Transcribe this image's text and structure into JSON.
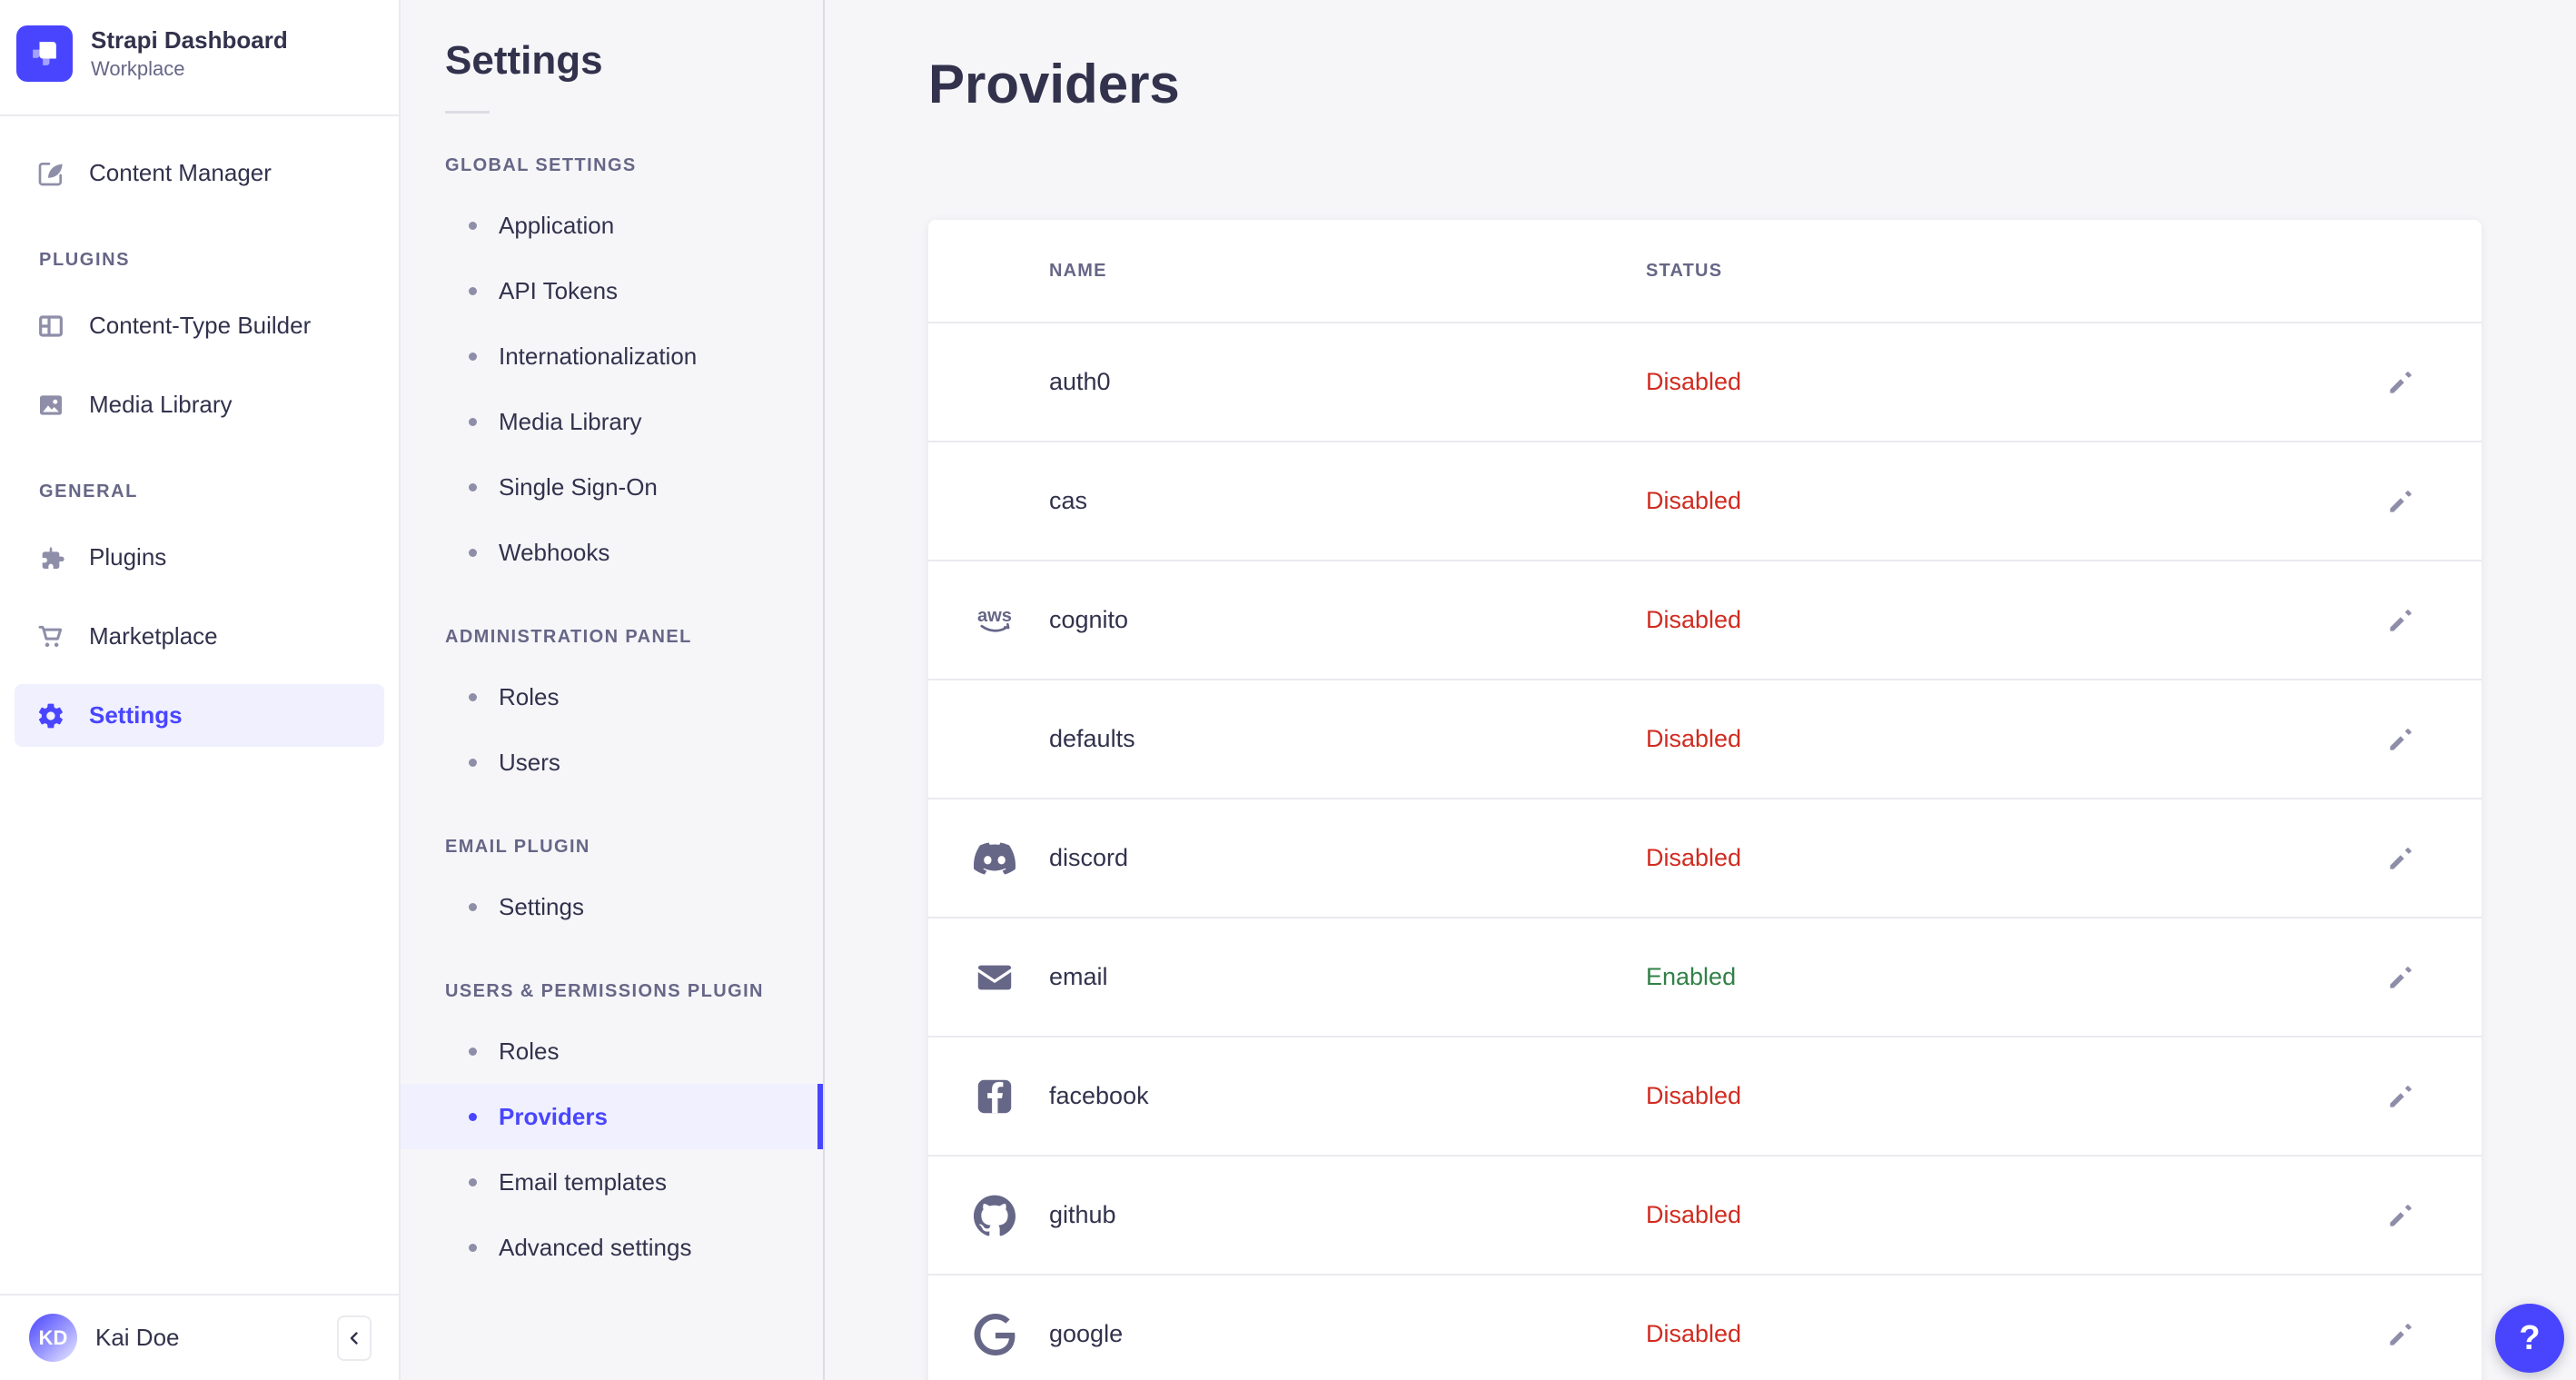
{
  "colors": {
    "primary": "#4945ff",
    "primary_bg": "#f0f0ff",
    "success": "#328048",
    "danger": "#d02b20"
  },
  "sidebar": {
    "app_title": "Strapi Dashboard",
    "app_subtitle": "Workplace",
    "sections": [
      {
        "label": "",
        "items": [
          {
            "label": "Content Manager",
            "icon": "content-manager"
          }
        ]
      },
      {
        "label": "PLUGINS",
        "items": [
          {
            "label": "Content-Type Builder",
            "icon": "content-type-builder"
          },
          {
            "label": "Media Library",
            "icon": "media-library"
          }
        ]
      },
      {
        "label": "GENERAL",
        "items": [
          {
            "label": "Plugins",
            "icon": "plugins"
          },
          {
            "label": "Marketplace",
            "icon": "marketplace"
          },
          {
            "label": "Settings",
            "icon": "settings-gear",
            "active": true
          }
        ]
      }
    ],
    "user": {
      "initials": "KD",
      "name": "Kai Doe"
    }
  },
  "settings_nav": {
    "title": "Settings",
    "sections": [
      {
        "label": "GLOBAL SETTINGS",
        "items": [
          {
            "label": "Application"
          },
          {
            "label": "API Tokens"
          },
          {
            "label": "Internationalization"
          },
          {
            "label": "Media Library"
          },
          {
            "label": "Single Sign-On"
          },
          {
            "label": "Webhooks"
          }
        ]
      },
      {
        "label": "ADMINISTRATION PANEL",
        "items": [
          {
            "label": "Roles"
          },
          {
            "label": "Users"
          }
        ]
      },
      {
        "label": "EMAIL PLUGIN",
        "items": [
          {
            "label": "Settings"
          }
        ]
      },
      {
        "label": "USERS & PERMISSIONS PLUGIN",
        "items": [
          {
            "label": "Roles"
          },
          {
            "label": "Providers",
            "active": true
          },
          {
            "label": "Email templates"
          },
          {
            "label": "Advanced settings"
          }
        ]
      }
    ]
  },
  "main": {
    "title": "Providers",
    "table": {
      "columns": [
        "NAME",
        "STATUS"
      ],
      "status_colors": {
        "Enabled": "#328048",
        "Disabled": "#d02b20"
      },
      "rows": [
        {
          "name": "auth0",
          "icon": "",
          "status": "Disabled"
        },
        {
          "name": "cas",
          "icon": "",
          "status": "Disabled"
        },
        {
          "name": "cognito",
          "icon": "aws",
          "status": "Disabled"
        },
        {
          "name": "defaults",
          "icon": "",
          "status": "Disabled"
        },
        {
          "name": "discord",
          "icon": "discord",
          "status": "Disabled"
        },
        {
          "name": "email",
          "icon": "email",
          "status": "Enabled"
        },
        {
          "name": "facebook",
          "icon": "facebook",
          "status": "Disabled"
        },
        {
          "name": "github",
          "icon": "github",
          "status": "Disabled"
        },
        {
          "name": "google",
          "icon": "google",
          "status": "Disabled"
        }
      ]
    }
  },
  "help": {
    "label": "?"
  }
}
